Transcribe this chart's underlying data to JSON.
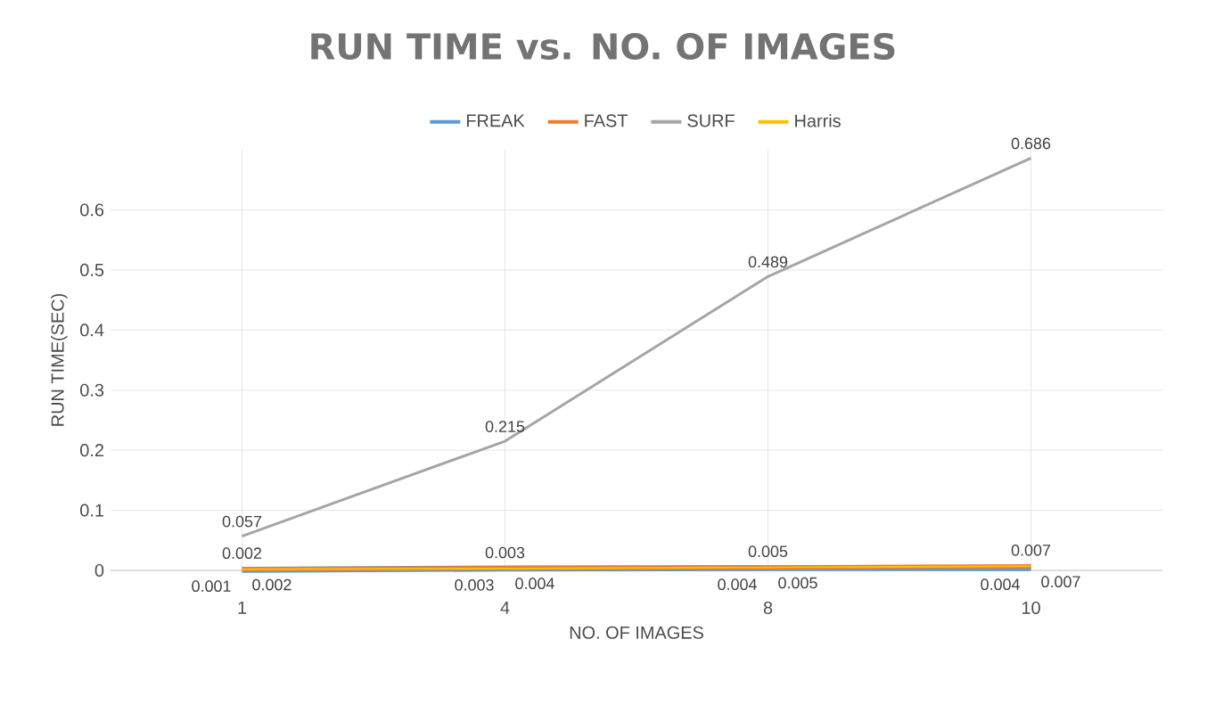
{
  "chart_data": {
    "type": "line",
    "title": "RUN TIME vs. NO. OF IMAGES",
    "xlabel": "NO. OF IMAGES",
    "ylabel": "RUN TIME(SEC)",
    "categories": [
      "1",
      "4",
      "8",
      "10"
    ],
    "series": [
      {
        "name": "FREAK",
        "color": "#5b9bd5",
        "values": [
          0.001,
          0.003,
          0.004,
          0.004
        ]
      },
      {
        "name": "FAST",
        "color": "#ed7d31",
        "values": [
          0.002,
          0.004,
          0.005,
          0.007
        ]
      },
      {
        "name": "SURF",
        "color": "#a5a5a5",
        "values": [
          0.057,
          0.215,
          0.489,
          0.686
        ]
      },
      {
        "name": "Harris",
        "color": "#ffc000",
        "values": [
          0.002,
          0.003,
          0.005,
          0.007
        ]
      }
    ],
    "ylim": [
      0,
      0.7
    ],
    "yticks": [
      0,
      0.1,
      0.2,
      0.3,
      0.4,
      0.5,
      0.6
    ],
    "grid": true,
    "legend": "top",
    "marker": "none",
    "line_style": "solid",
    "data_labels": true
  }
}
